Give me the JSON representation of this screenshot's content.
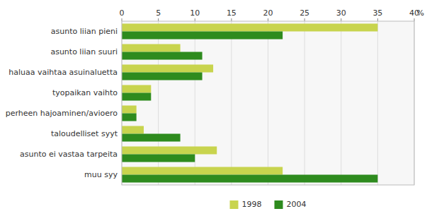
{
  "chart_data": {
    "type": "bar",
    "orientation": "horizontal",
    "categories": [
      "asunto liian pieni",
      "asunto liian suuri",
      "haluaa vaihtaa asuinaluetta",
      "tyopaikan vaihto",
      "perheen hajoaminen/avioero",
      "taloudelliset syyt",
      "asunto ei vastaa tarpeita",
      "muu syy"
    ],
    "series": [
      {
        "name": "1998",
        "color": "#c8d44e",
        "values": [
          35,
          8,
          12.5,
          4,
          2,
          3,
          13,
          22
        ]
      },
      {
        "name": "2004",
        "color": "#2e8b1e",
        "values": [
          22,
          11,
          11,
          4,
          2,
          8,
          10,
          35
        ]
      }
    ],
    "x_label": "%",
    "xlim": [
      0,
      40
    ],
    "xticks": [
      0,
      5,
      10,
      15,
      20,
      25,
      30,
      35,
      40
    ],
    "grid": true,
    "legend": "bottom"
  }
}
